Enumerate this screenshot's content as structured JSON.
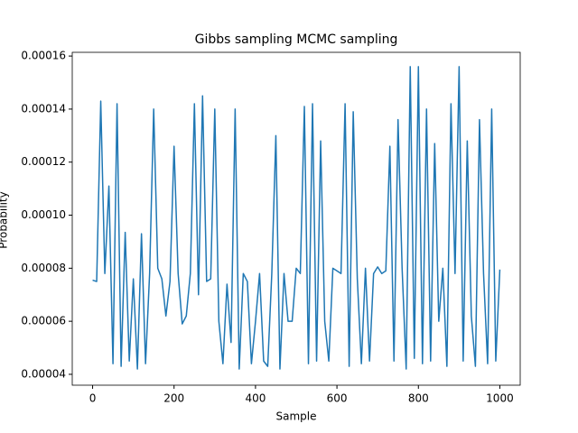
{
  "chart_data": {
    "type": "line",
    "title": "Gibbs sampling MCMC sampling",
    "xlabel": "Sample",
    "ylabel": "Probability",
    "x": [
      0,
      10,
      20,
      30,
      40,
      50,
      60,
      70,
      80,
      90,
      100,
      110,
      120,
      130,
      140,
      150,
      160,
      170,
      180,
      190,
      200,
      210,
      220,
      230,
      240,
      250,
      260,
      270,
      280,
      290,
      300,
      310,
      320,
      330,
      340,
      350,
      360,
      370,
      380,
      390,
      400,
      410,
      420,
      430,
      440,
      450,
      460,
      470,
      480,
      490,
      500,
      510,
      520,
      530,
      540,
      550,
      560,
      570,
      580,
      590,
      600,
      610,
      620,
      630,
      640,
      650,
      660,
      670,
      680,
      690,
      700,
      710,
      720,
      730,
      740,
      750,
      760,
      770,
      780,
      790,
      800,
      810,
      820,
      830,
      840,
      850,
      860,
      870,
      880,
      890,
      900,
      910,
      920,
      930,
      940,
      950,
      960,
      970,
      980,
      990,
      1000
    ],
    "series": [
      {
        "name": "Probability",
        "color": "#1f77b4",
        "values": [
          7.55e-05,
          7.5e-05,
          0.000143,
          7.8e-05,
          0.000111,
          4.4e-05,
          0.000142,
          4.3e-05,
          9.35e-05,
          4.5e-05,
          7.6e-05,
          4.2e-05,
          9.3e-05,
          4.4e-05,
          7.8e-05,
          0.00014,
          8e-05,
          7.6e-05,
          6.2e-05,
          7.5e-05,
          0.000126,
          7.8e-05,
          5.9e-05,
          6.2e-05,
          7.8e-05,
          0.000142,
          7e-05,
          0.000145,
          7.5e-05,
          7.6e-05,
          0.00014,
          6e-05,
          4.4e-05,
          7.4e-05,
          5.2e-05,
          0.00014,
          4.2e-05,
          7.8e-05,
          7.5e-05,
          4.4e-05,
          6e-05,
          7.8e-05,
          4.5e-05,
          4.3e-05,
          7.8e-05,
          0.00013,
          4.2e-05,
          7.8e-05,
          6e-05,
          6e-05,
          8e-05,
          7.8e-05,
          0.000141,
          4.4e-05,
          0.000142,
          4.5e-05,
          0.000128,
          6e-05,
          4.5e-05,
          8e-05,
          7.9e-05,
          7.8e-05,
          0.000142,
          4.3e-05,
          0.000139,
          7.6e-05,
          4.4e-05,
          8e-05,
          4.5e-05,
          7.8e-05,
          8.05e-05,
          7.8e-05,
          7.9e-05,
          0.000126,
          4.5e-05,
          0.000136,
          8e-05,
          4.2e-05,
          0.000156,
          4.6e-05,
          0.000156,
          4.4e-05,
          0.00014,
          4.5e-05,
          0.000127,
          6e-05,
          8e-05,
          4.3e-05,
          0.000142,
          7.8e-05,
          0.000156,
          4.5e-05,
          0.000128,
          6.2e-05,
          4.3e-05,
          0.000136,
          7.8e-05,
          4.4e-05,
          0.00014,
          4.5e-05,
          7.95e-05
        ]
      }
    ],
    "xlim": [
      -50,
      1050
    ],
    "ylim": [
      3.59e-05,
      0.0001614
    ],
    "xticks": [
      0,
      200,
      400,
      600,
      800,
      1000
    ],
    "yticks": [
      {
        "value": 4e-05,
        "label": "0.00004"
      },
      {
        "value": 6e-05,
        "label": "0.00006"
      },
      {
        "value": 8e-05,
        "label": "0.00008"
      },
      {
        "value": 0.0001,
        "label": "0.00010"
      },
      {
        "value": 0.00012,
        "label": "0.00012"
      },
      {
        "value": 0.00014,
        "label": "0.00014"
      },
      {
        "value": 0.00016,
        "label": "0.00016"
      }
    ],
    "grid": false
  }
}
